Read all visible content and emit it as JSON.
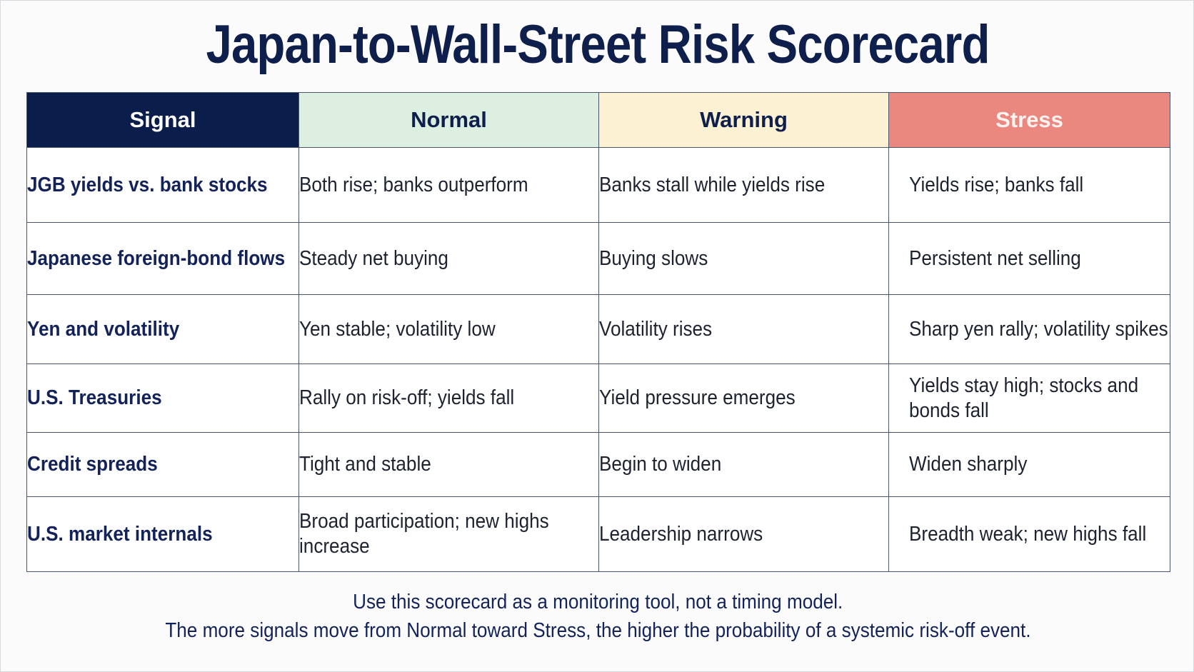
{
  "title": "Japan-to-Wall-Street Risk Scorecard",
  "headers": [
    "Signal",
    "Normal",
    "Warning",
    "Stress"
  ],
  "header_colors": {
    "signal": "#0b1d4a",
    "normal": "#dcefe0",
    "warning": "#fdf1d4",
    "stress": "#ea8880"
  },
  "rows": [
    {
      "signal": "JGB yields vs. bank stocks",
      "normal": "Both rise; banks outperform",
      "warning": "Banks stall while yields rise",
      "stress": "Yields rise; banks fall"
    },
    {
      "signal": "Japanese foreign-bond flows",
      "normal": "Steady net buying",
      "warning": "Buying slows",
      "stress": "Persistent net selling"
    },
    {
      "signal": "Yen and volatility",
      "normal": "Yen stable; volatility low",
      "warning": "Volatility rises",
      "stress": "Sharp yen rally; volatility spikes"
    },
    {
      "signal": "U.S. Treasuries",
      "normal": "Rally on risk-off; yields fall",
      "warning": "Yield pressure emerges",
      "stress": "Yields stay high; stocks and bonds fall"
    },
    {
      "signal": "Credit spreads",
      "normal": "Tight and stable",
      "warning": "Begin to widen",
      "stress": "Widen sharply"
    },
    {
      "signal": "U.S. market internals",
      "normal": "Broad participation; new highs increase",
      "warning": "Leadership narrows",
      "stress": "Breadth weak; new highs fall"
    }
  ],
  "footer": {
    "line1": "Use this scorecard as a monitoring tool, not a timing model.",
    "line2": "The more signals move from Normal toward Stress, the higher the probability of a systemic risk-off event."
  }
}
